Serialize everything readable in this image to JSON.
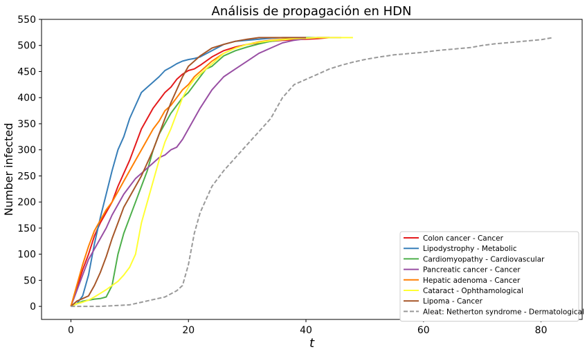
{
  "chart_data": {
    "type": "line",
    "title": "Análisis de propagación en HDN",
    "xlabel": "t",
    "ylabel": "Number infected",
    "xlim": [
      -5,
      87
    ],
    "ylim": [
      -25,
      550
    ],
    "xticks": [
      0,
      20,
      40,
      60,
      80
    ],
    "yticks": [
      0,
      50,
      100,
      150,
      200,
      250,
      300,
      350,
      400,
      450,
      500,
      550
    ],
    "grid": false,
    "legend_position": "lower right",
    "series": [
      {
        "name": "Colon cancer - Cancer",
        "color": "#e41a1c",
        "style": "solid",
        "x": [
          0,
          1,
          2,
          3,
          4,
          5,
          6,
          7,
          8,
          9,
          10,
          11,
          12,
          13,
          14,
          15,
          16,
          17,
          18,
          19,
          20,
          21,
          22,
          24,
          26,
          28,
          30,
          32,
          34,
          36,
          38,
          40,
          42,
          44
        ],
        "y": [
          0,
          35,
          70,
          100,
          135,
          160,
          180,
          200,
          230,
          255,
          280,
          310,
          340,
          360,
          380,
          395,
          410,
          420,
          435,
          445,
          452,
          455,
          462,
          478,
          490,
          497,
          502,
          505,
          508,
          510,
          511,
          512,
          513,
          515
        ]
      },
      {
        "name": "Lipodystrophy - Metabolic",
        "color": "#377eb8",
        "style": "solid",
        "x": [
          0,
          1,
          2,
          3,
          4,
          5,
          6,
          7,
          8,
          9,
          10,
          11,
          12,
          13,
          14,
          15,
          16,
          17,
          18,
          19,
          20,
          21,
          22,
          24,
          26,
          28,
          30,
          32,
          34,
          36,
          38,
          40
        ],
        "y": [
          0,
          5,
          20,
          60,
          120,
          170,
          215,
          260,
          300,
          325,
          360,
          385,
          410,
          420,
          430,
          440,
          452,
          458,
          465,
          470,
          473,
          475,
          478,
          490,
          502,
          508,
          510,
          512,
          514,
          515,
          515,
          515
        ]
      },
      {
        "name": "Cardiomyopathy - Cardiovascular",
        "color": "#4daf4a",
        "style": "solid",
        "x": [
          0,
          1,
          2,
          3,
          4,
          5,
          6,
          7,
          8,
          9,
          10,
          11,
          12,
          13,
          14,
          15,
          16,
          17,
          18,
          19,
          20,
          21,
          22,
          23,
          24,
          26,
          28,
          30,
          32,
          34,
          36,
          38,
          40,
          42,
          44
        ],
        "y": [
          0,
          5,
          10,
          12,
          14,
          15,
          18,
          40,
          100,
          140,
          170,
          200,
          230,
          260,
          300,
          330,
          350,
          370,
          385,
          400,
          410,
          425,
          440,
          455,
          460,
          480,
          490,
          497,
          503,
          508,
          511,
          513,
          515,
          515,
          515
        ]
      },
      {
        "name": "Pancreatic cancer - Cancer",
        "color": "#984ea3",
        "style": "solid",
        "x": [
          0,
          1,
          2,
          3,
          4,
          5,
          6,
          7,
          8,
          9,
          10,
          11,
          12,
          13,
          14,
          15,
          16,
          17,
          18,
          19,
          20,
          21,
          22,
          24,
          26,
          28,
          30,
          32,
          34,
          36,
          38,
          40,
          42,
          44,
          46
        ],
        "y": [
          0,
          30,
          60,
          90,
          110,
          130,
          150,
          175,
          195,
          215,
          230,
          245,
          255,
          265,
          275,
          285,
          290,
          300,
          305,
          320,
          340,
          360,
          380,
          415,
          440,
          455,
          470,
          485,
          495,
          505,
          510,
          513,
          515,
          515,
          515
        ]
      },
      {
        "name": "Hepatic adenoma - Cancer",
        "color": "#ff7f00",
        "style": "solid",
        "x": [
          0,
          1,
          2,
          3,
          4,
          5,
          6,
          7,
          8,
          9,
          10,
          11,
          12,
          13,
          14,
          15,
          16,
          17,
          18,
          19,
          20,
          21,
          22,
          24,
          26,
          28,
          30,
          32,
          34,
          36,
          38,
          40,
          42,
          44
        ],
        "y": [
          0,
          40,
          80,
          115,
          145,
          165,
          185,
          200,
          220,
          240,
          260,
          280,
          300,
          320,
          340,
          355,
          375,
          385,
          400,
          415,
          425,
          440,
          450,
          470,
          485,
          495,
          502,
          507,
          510,
          512,
          513,
          514,
          515,
          515
        ]
      },
      {
        "name": "Cataract - Ophthamological",
        "color": "#ffff33",
        "style": "solid",
        "x": [
          0,
          1,
          2,
          3,
          4,
          5,
          6,
          7,
          8,
          9,
          10,
          11,
          12,
          13,
          14,
          15,
          16,
          17,
          18,
          19,
          20,
          21,
          22,
          24,
          26,
          28,
          30,
          32,
          34,
          36,
          38,
          40,
          42,
          44,
          46,
          48
        ],
        "y": [
          0,
          5,
          8,
          12,
          18,
          25,
          32,
          40,
          48,
          60,
          75,
          100,
          160,
          200,
          240,
          280,
          315,
          340,
          370,
          400,
          420,
          435,
          445,
          465,
          485,
          495,
          502,
          506,
          509,
          511,
          513,
          514,
          515,
          515,
          515,
          515
        ]
      },
      {
        "name": "Lipoma - Cancer",
        "color": "#a65628",
        "style": "solid",
        "x": [
          0,
          1,
          2,
          3,
          4,
          5,
          6,
          7,
          8,
          9,
          10,
          11,
          12,
          13,
          14,
          15,
          16,
          17,
          18,
          19,
          20,
          21,
          22,
          24,
          26,
          28,
          30,
          32,
          34,
          36,
          38,
          40
        ],
        "y": [
          0,
          10,
          15,
          20,
          40,
          65,
          95,
          130,
          160,
          190,
          210,
          230,
          250,
          275,
          300,
          330,
          360,
          390,
          415,
          440,
          460,
          470,
          480,
          495,
          502,
          508,
          512,
          515,
          515,
          515,
          515,
          515
        ]
      },
      {
        "name": "Aleat: Netherton syndrome - Dermatological",
        "color": "#999999",
        "style": "dashed",
        "x": [
          0,
          5,
          10,
          12,
          14,
          16,
          18,
          19,
          20,
          21,
          22,
          23,
          24,
          26,
          28,
          30,
          32,
          34,
          36,
          38,
          40,
          42,
          44,
          46,
          48,
          50,
          52,
          55,
          58,
          60,
          62,
          64,
          66,
          68,
          70,
          72,
          74,
          76,
          78,
          80,
          82
        ],
        "y": [
          0,
          0,
          3,
          8,
          13,
          18,
          30,
          40,
          80,
          140,
          180,
          205,
          230,
          260,
          285,
          310,
          335,
          360,
          400,
          425,
          435,
          445,
          455,
          462,
          468,
          473,
          477,
          482,
          485,
          487,
          490,
          492,
          494,
          496,
          500,
          503,
          505,
          507,
          509,
          511,
          515
        ]
      }
    ]
  }
}
